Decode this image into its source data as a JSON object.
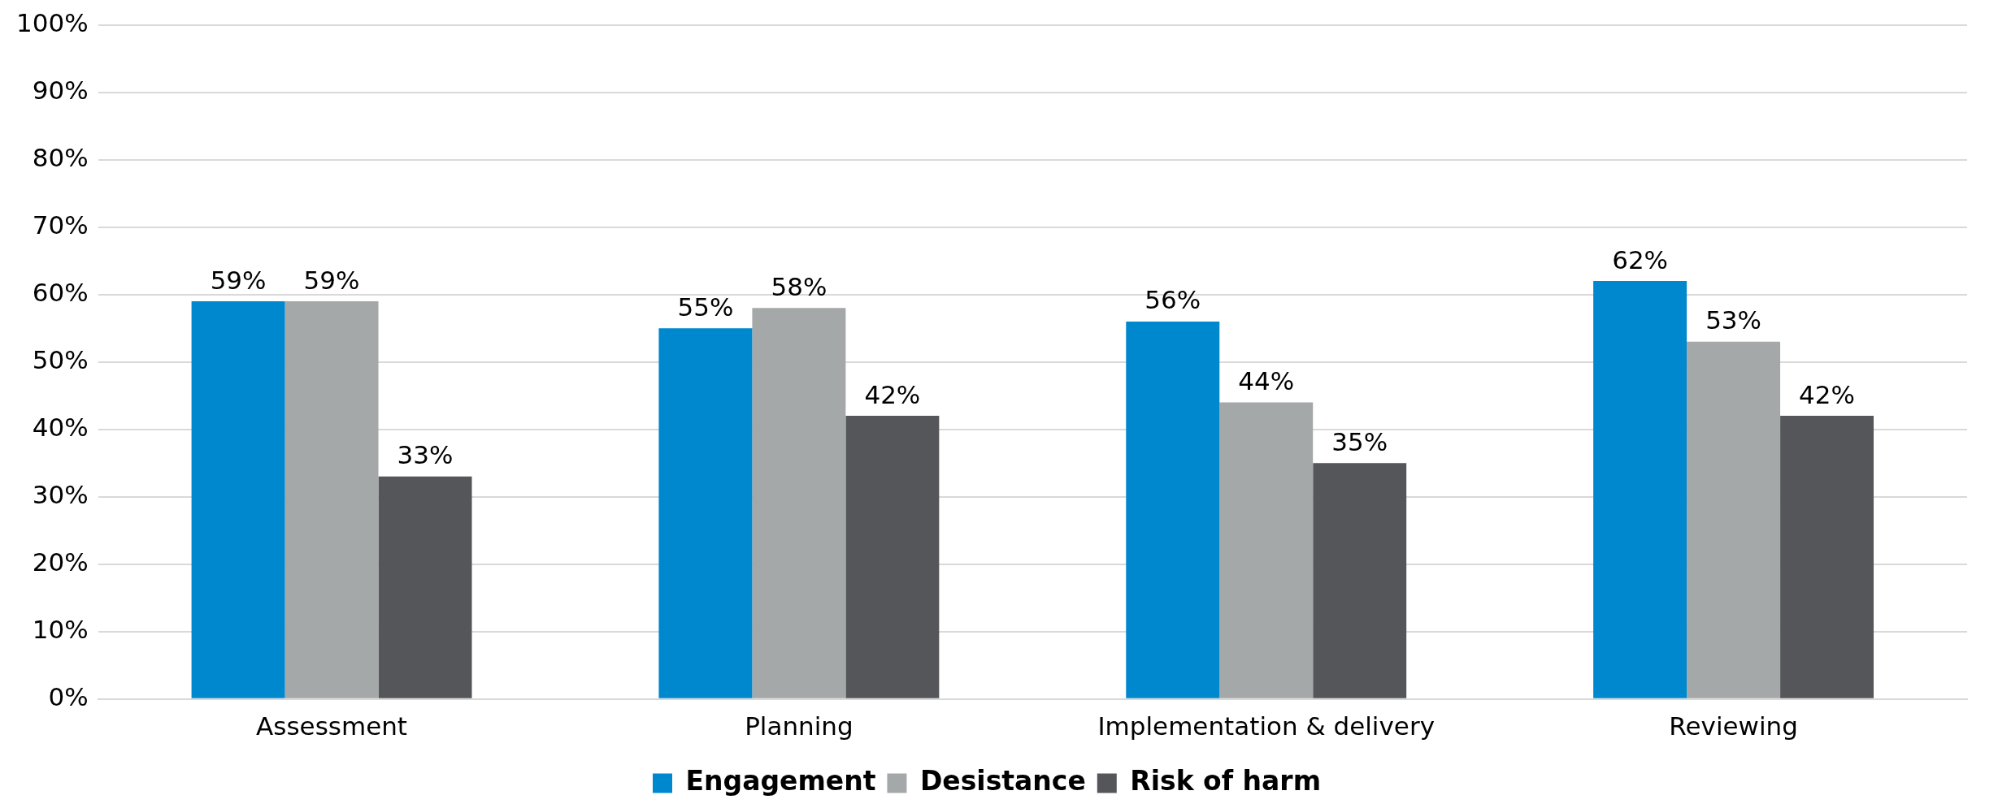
{
  "chart_data": {
    "type": "bar",
    "categories": [
      "Assessment",
      "Planning",
      "Implementation & delivery",
      "Reviewing"
    ],
    "series": [
      {
        "name": "Engagement",
        "color": "#0088cf",
        "values": [
          59,
          55,
          56,
          62
        ],
        "value_labels": [
          "59%",
          "55%",
          "56%",
          "62%"
        ]
      },
      {
        "name": "Desistance",
        "color": "#a5a8a9",
        "values": [
          59,
          58,
          44,
          53
        ],
        "value_labels": [
          "59%",
          "58%",
          "44%",
          "53%"
        ]
      },
      {
        "name": "Risk of harm",
        "color": "#55565a",
        "values": [
          33,
          42,
          35,
          42
        ],
        "value_labels": [
          "33%",
          "42%",
          "35%",
          "42%"
        ]
      }
    ],
    "ylim": [
      0,
      100
    ],
    "yticks": [
      {
        "value": 0,
        "label": "0%"
      },
      {
        "value": 10,
        "label": "10%"
      },
      {
        "value": 20,
        "label": "20%"
      },
      {
        "value": 30,
        "label": "30%"
      },
      {
        "value": 40,
        "label": "40%"
      },
      {
        "value": 50,
        "label": "50%"
      },
      {
        "value": 60,
        "label": "60%"
      },
      {
        "value": 70,
        "label": "70%"
      },
      {
        "value": 80,
        "label": "80%"
      },
      {
        "value": 90,
        "label": "90%"
      },
      {
        "value": 100,
        "label": "100%"
      }
    ],
    "grid": "y",
    "legend": "bottom"
  }
}
